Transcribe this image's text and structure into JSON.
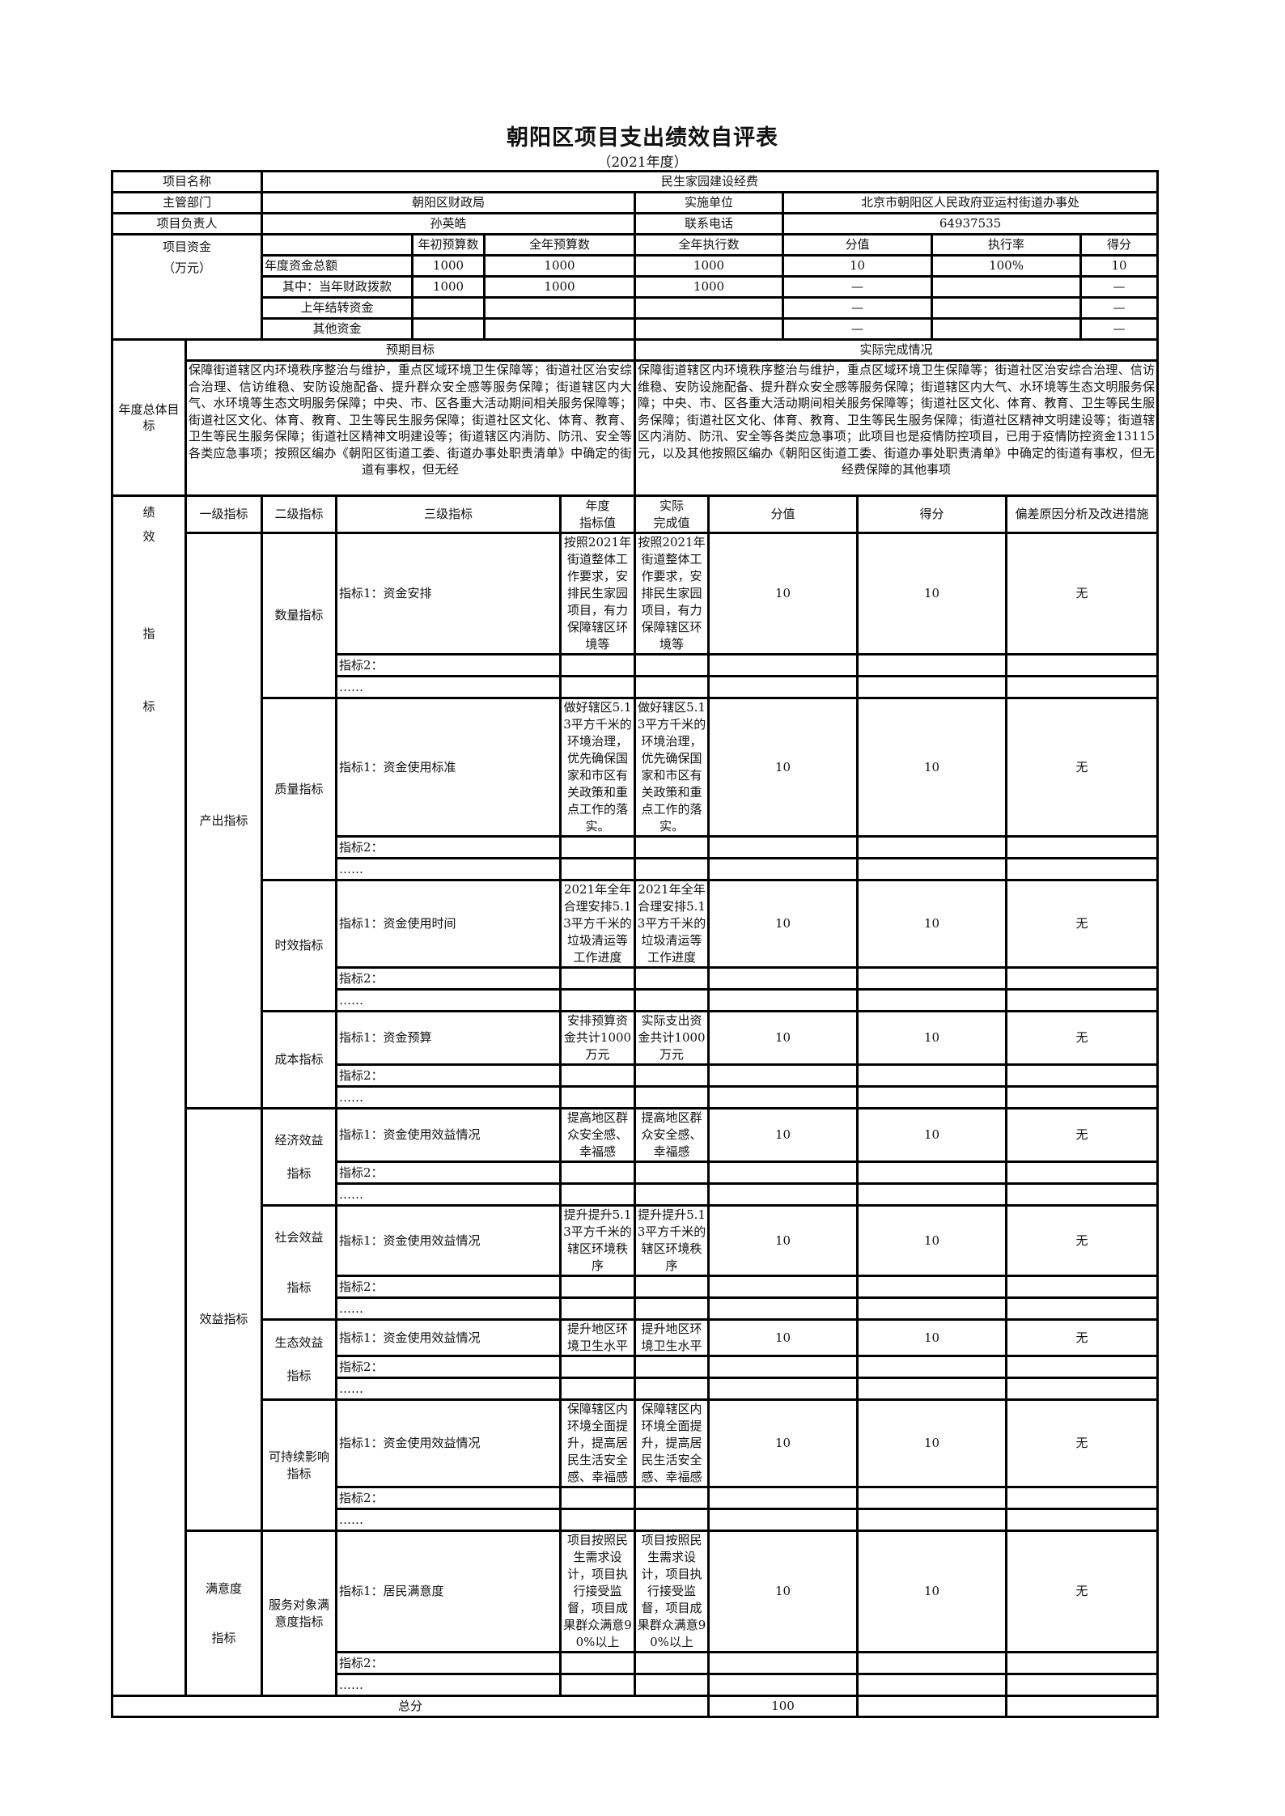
{
  "title": "朝阳区项目支出绩效自评表",
  "subtitle": "（2021年度）",
  "project": {
    "name_label": "项目名称",
    "name": "民生家园建设经费",
    "dept_label": "主管部门",
    "dept": "朝阳区财政局",
    "unit_label": "实施单位",
    "unit": "北京市朝阳区人民政府亚运村街道办事处",
    "manager_label": "项目负责人",
    "manager": "孙英皓",
    "phone_label": "联系电话",
    "phone": "64937535"
  },
  "funding": {
    "label": "项目资金\n（万元）",
    "headers": {
      "initial": "年初预算数",
      "annual": "全年预算数",
      "executed": "全年执行数",
      "value": "分值",
      "rate": "执行率",
      "score": "得分"
    },
    "rows": [
      {
        "label": "年度资金总额",
        "initial": "1000",
        "annual": "1000",
        "executed": "1000",
        "value": "10",
        "rate": "100%",
        "score": "10"
      },
      {
        "label": "其中：当年财政拨款",
        "initial": "1000",
        "annual": "1000",
        "executed": "1000",
        "value": "—",
        "rate": "",
        "score": "—"
      },
      {
        "label": "上年结转资金",
        "initial": "",
        "annual": "",
        "executed": "",
        "value": "—",
        "rate": "",
        "score": "—"
      },
      {
        "label": "其他资金",
        "initial": "",
        "annual": "",
        "executed": "",
        "value": "—",
        "rate": "",
        "score": "—"
      }
    ]
  },
  "goals": {
    "label": "年度总体目标",
    "expected_header": "预期目标",
    "actual_header": "实际完成情况",
    "expected": "保障街道辖区内环境秩序整治与维护，重点区域环境卫生保障等；街道社区治安综合治理、信访维稳、安防设施配备、提升群众安全感等服务保障；街道辖区内大气、水环境等生态文明服务保障；中央、市、区各重大活动期间相关服务保障等；街道社区文化、体育、教育、卫生等民生服务保障；街道社区文化、体育、教育、卫生等民生服务保障；街道社区精神文明建设等；街道辖区内消防、防汛、安全等各类应急事项；按照区编办《朝阳区街道工委、街道办事处职责清单》中确定的街道有事权，但无经",
    "actual": "保障街道辖区内环境秩序整治与维护，重点区域环境卫生保障等；街道社区治安综合治理、信访维稳、安防设施配备、提升群众安全感等服务保障；街道辖区内大气、水环境等生态文明服务保障；中央、市、区各重大活动期间相关服务保障等；街道社区文化、体育、教育、卫生等民生服务保障；街道社区文化、体育、教育、卫生等民生服务保障；街道社区精神文明建设等；街道辖区内消防、防汛、安全等各类应急事项；此项目也是疫情防控项目，已用于疫情防控资金13115元，以及其他按照区编办《朝阳区街道工委、街道办事处职责清单》中确定的街道有事权，但无经费保障的其他事项"
  },
  "indicators": {
    "perf_label": "绩\n效\n\n\n\n指\n\n\n标",
    "header": {
      "level1": "一级指标",
      "level2": "二级指标",
      "level3": "三级指标",
      "target": "年度\n指标值",
      "actual": "实际\n完成值",
      "value": "分值",
      "score": "得分",
      "deviation": "偏差原因分析及改进措施"
    },
    "sections": [
      {
        "level1": "产出指标",
        "groups": [
          {
            "level2": "数量指标",
            "rows": [
              {
                "name": "指标1：资金安排",
                "target": "按照2021年街道整体工作要求，安排民生家园项目，有力保障辖区环境等",
                "actual": "按照2021年街道整体工作要求，安排民生家园项目，有力保障辖区环境等",
                "value": "10",
                "score": "10",
                "deviation": "无"
              },
              {
                "name": "指标2："
              },
              {
                "name": "……"
              }
            ]
          },
          {
            "level2": "质量指标",
            "rows": [
              {
                "name": "指标1：资金使用标准",
                "target": "做好辖区5.13平方千米的环境治理，优先确保国家和市区有关政策和重点工作的落实。",
                "actual": "做好辖区5.13平方千米的环境治理，优先确保国家和市区有关政策和重点工作的落实。",
                "value": "10",
                "score": "10",
                "deviation": "无"
              },
              {
                "name": "指标2："
              },
              {
                "name": "……"
              }
            ]
          },
          {
            "level2": "时效指标",
            "rows": [
              {
                "name": "指标1：资金使用时间",
                "target": "2021年全年合理安排5.13平方千米的垃圾清运等工作进度",
                "actual": "2021年全年合理安排5.13平方千米的垃圾清运等工作进度",
                "value": "10",
                "score": "10",
                "deviation": "无"
              },
              {
                "name": "指标2："
              },
              {
                "name": "……"
              }
            ]
          },
          {
            "level2": "成本指标",
            "rows": [
              {
                "name": "指标1：资金预算",
                "target": "安排预算资金共计1000万元",
                "actual": "实际支出资金共计1000万元",
                "value": "10",
                "score": "10",
                "deviation": "无"
              },
              {
                "name": "指标2："
              },
              {
                "name": "……"
              }
            ]
          }
        ]
      },
      {
        "level1": "效益指标",
        "groups": [
          {
            "level2": "经济效益\n\n指标",
            "rows": [
              {
                "name": "指标1：资金使用效益情况",
                "target": "提高地区群众安全感、幸福感",
                "actual": "提高地区群众安全感、幸福感",
                "value": "10",
                "score": "10",
                "deviation": "无"
              },
              {
                "name": "指标2："
              },
              {
                "name": "……"
              }
            ]
          },
          {
            "level2": "社会效益\n\n\n指标",
            "rows": [
              {
                "name": "指标1：资金使用效益情况",
                "target": "提升提升5.13平方千米的辖区环境秩序",
                "actual": "提升提升5.13平方千米的辖区环境秩序",
                "value": "10",
                "score": "10",
                "deviation": "无"
              },
              {
                "name": "指标2："
              },
              {
                "name": "……"
              }
            ]
          },
          {
            "level2": "生态效益\n\n指标",
            "rows": [
              {
                "name": "指标1：资金使用效益情况",
                "target": "提升地区环境卫生水平",
                "actual": "提升地区环境卫生水平",
                "value": "10",
                "score": "10",
                "deviation": "无"
              },
              {
                "name": "指标2："
              },
              {
                "name": "……"
              }
            ]
          },
          {
            "level2": "可持续影响指标",
            "rows": [
              {
                "name": "指标1：资金使用效益情况",
                "target": "保障辖区内环境全面提升，提高居民生活安全感、幸福感",
                "actual": "保障辖区内环境全面提升，提高居民生活安全感、幸福感",
                "value": "10",
                "score": "10",
                "deviation": "无"
              },
              {
                "name": "指标2："
              },
              {
                "name": "……"
              }
            ]
          }
        ]
      },
      {
        "level1": "满意度\n\n\n指标",
        "groups": [
          {
            "level2": "服务对象满意度指标",
            "rows": [
              {
                "name": "指标1：居民满意度",
                "target": "项目按照民生需求设计，项目执行接受监督，项目成果群众满意90%以上",
                "actual": "项目按照民生需求设计，项目执行接受监督，项目成果群众满意90%以上",
                "value": "10",
                "score": "10",
                "deviation": "无"
              },
              {
                "name": "指标2："
              },
              {
                "name": "……"
              }
            ]
          }
        ]
      }
    ]
  },
  "total": {
    "label": "总分",
    "value": "100",
    "score": "",
    "deviation": ""
  }
}
